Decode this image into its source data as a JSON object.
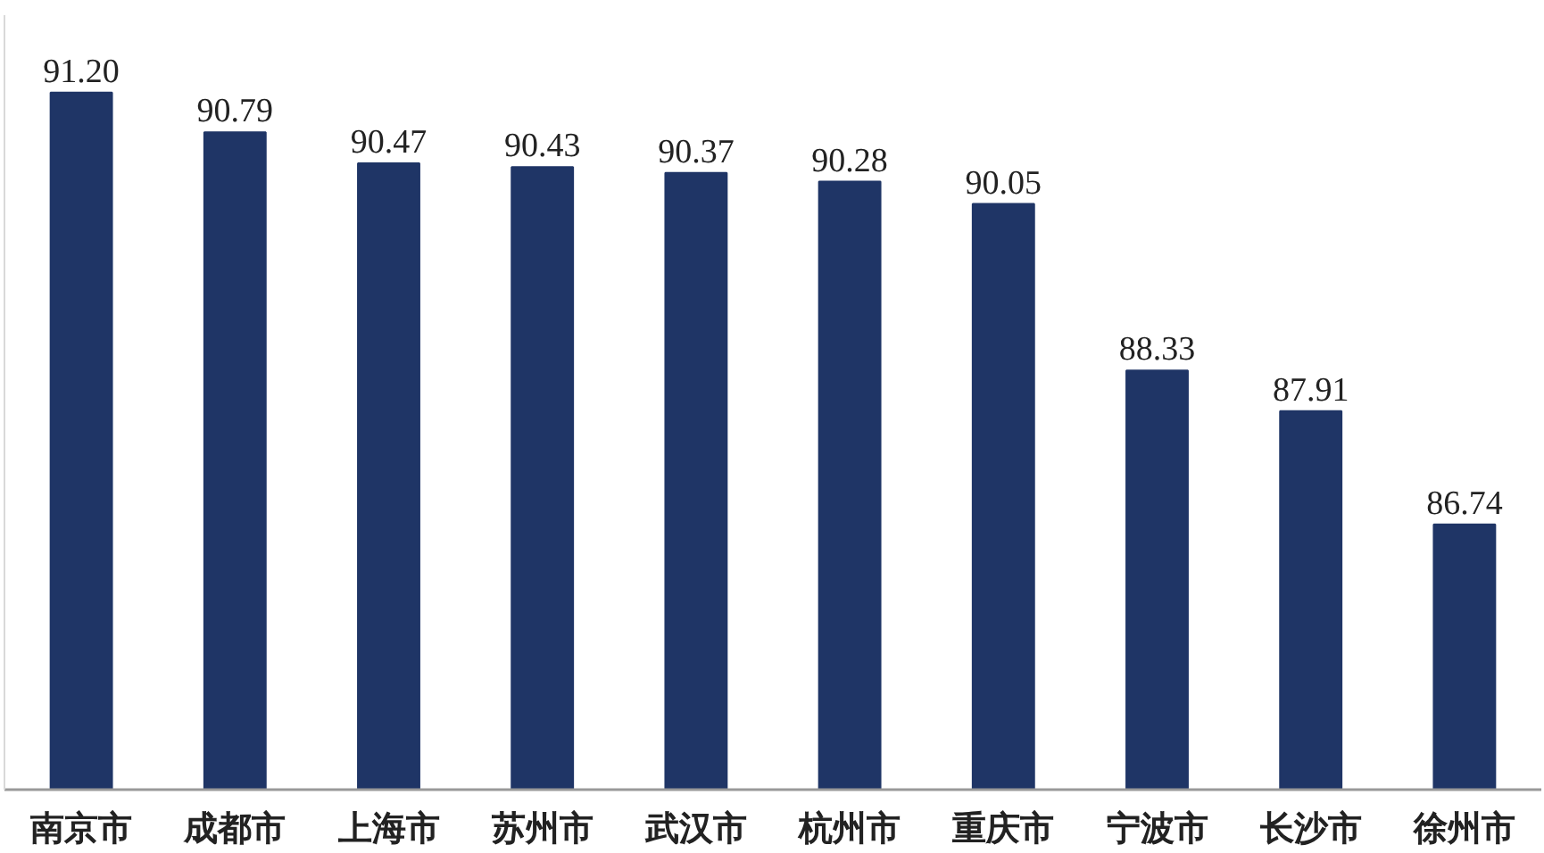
{
  "chart_data": {
    "type": "bar",
    "categories": [
      "南京市",
      "成都市",
      "上海市",
      "苏州市",
      "武汉市",
      "杭州市",
      "重庆市",
      "宁波市",
      "长沙市",
      "徐州市"
    ],
    "values": [
      91.2,
      90.79,
      90.47,
      90.43,
      90.37,
      90.28,
      90.05,
      88.33,
      87.91,
      86.74
    ],
    "value_labels": [
      "91.20",
      "90.79",
      "90.47",
      "90.43",
      "90.37",
      "90.28",
      "90.05",
      "88.33",
      "87.91",
      "86.74"
    ],
    "color": "#1f3566",
    "ylim": [
      84,
      92
    ],
    "tick_labels": "x"
  }
}
